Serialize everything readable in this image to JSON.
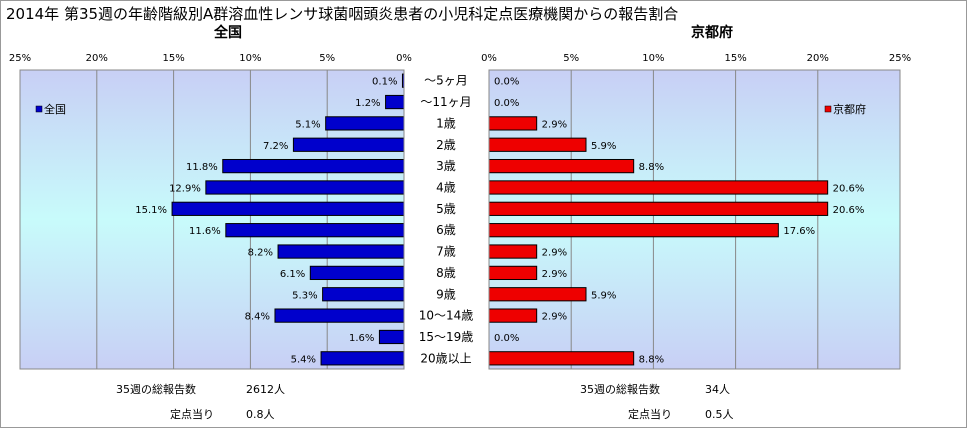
{
  "title": "2014年 第35週の年齢階級別A群溶血性レンサ球菌咽頭炎患者の小児科定点医療機関からの報告割合",
  "chart_data": [
    {
      "type": "bar",
      "orientation": "horizontal",
      "direction": "leftward",
      "title": "全国",
      "categories": [
        "～5ヶ月",
        "～11ヶ月",
        "1歳",
        "2歳",
        "3歳",
        "4歳",
        "5歳",
        "6歳",
        "7歳",
        "8歳",
        "9歳",
        "10～14歳",
        "15～19歳",
        "20歳以上"
      ],
      "series": [
        {
          "name": "全国",
          "color": "#0000cc",
          "values": [
            0.1,
            1.2,
            5.1,
            7.2,
            11.8,
            12.9,
            15.1,
            11.6,
            8.2,
            6.1,
            5.3,
            8.4,
            1.6,
            5.4
          ],
          "value_labels": [
            "0.1%",
            "1.2%",
            "5.1%",
            "7.2%",
            "11.8%",
            "12.9%",
            "15.1%",
            "11.6%",
            "8.2%",
            "6.1%",
            "5.3%",
            "8.4%",
            "1.6%",
            "5.4%"
          ]
        }
      ],
      "xlim": [
        0,
        25
      ],
      "ticks": [
        "0%",
        "5%",
        "10%",
        "15%",
        "20%",
        "25%"
      ],
      "legend_position": "top-left",
      "grid": true
    },
    {
      "type": "bar",
      "orientation": "horizontal",
      "direction": "rightward",
      "title": "京都府",
      "categories": [
        "～5ヶ月",
        "～11ヶ月",
        "1歳",
        "2歳",
        "3歳",
        "4歳",
        "5歳",
        "6歳",
        "7歳",
        "8歳",
        "9歳",
        "10～14歳",
        "15～19歳",
        "20歳以上"
      ],
      "series": [
        {
          "name": "京都府",
          "color": "#ee0000",
          "values": [
            0.0,
            0.0,
            2.9,
            5.9,
            8.8,
            20.6,
            20.6,
            17.6,
            2.9,
            2.9,
            5.9,
            2.9,
            0.0,
            8.8
          ],
          "value_labels": [
            "0.0%",
            "0.0%",
            "2.9%",
            "5.9%",
            "8.8%",
            "20.6%",
            "20.6%",
            "17.6%",
            "2.9%",
            "2.9%",
            "5.9%",
            "2.9%",
            "0.0%",
            "8.8%"
          ]
        }
      ],
      "xlim": [
        0,
        25
      ],
      "ticks": [
        "0%",
        "5%",
        "10%",
        "15%",
        "20%",
        "25%"
      ],
      "legend_position": "top-right",
      "grid": true
    }
  ],
  "footer": {
    "national": {
      "total_label": "35週の総報告数",
      "total_value": "2612人",
      "per_label": "定点当り",
      "per_value": "0.8人"
    },
    "kyoto": {
      "total_label": "35週の総報告数",
      "total_value": "34人",
      "per_label": "定点当り",
      "per_value": "0.5人"
    }
  },
  "colors": {
    "background_gradient_edge": "#c8cff5",
    "background_gradient_center": "#c8fbfb",
    "grid": "#888888"
  }
}
